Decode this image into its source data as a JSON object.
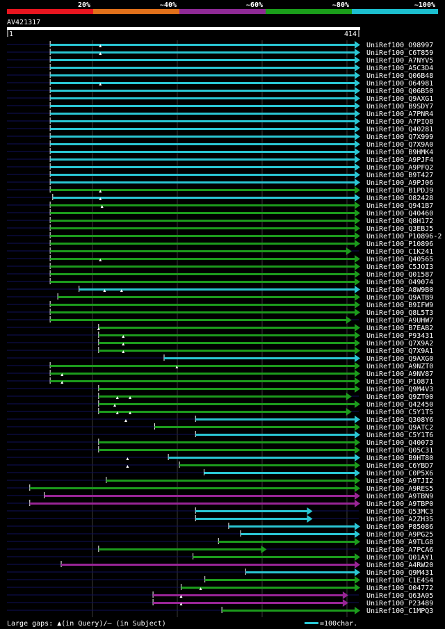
{
  "chart_data": {
    "type": "alignment-map",
    "query_id": "AV421317",
    "query_range": [
      1,
      414
    ],
    "query_start_label": "1",
    "query_end_label": "414",
    "identity_legend": [
      {
        "label": "20%",
        "color": "#e8151f"
      },
      {
        "label": "~40%",
        "color": "#e0701a"
      },
      {
        "label": "~60%",
        "color": "#8f2a96"
      },
      {
        "label": "~80%",
        "color": "#1a9e1a"
      },
      {
        "label": "~100%",
        "color": "#1cbfcf"
      }
    ],
    "footer_text": "Large gaps: ▲(in Query)/– (in Subject)",
    "scale_text": "=100char.",
    "hits": [
      {
        "label": "UniRef100_O98997",
        "start": 51,
        "end": 414,
        "color": "cyan",
        "gaps": [
          110
        ]
      },
      {
        "label": "UniRef100_C6T859",
        "start": 51,
        "end": 414,
        "color": "cyan",
        "gaps": [
          110
        ]
      },
      {
        "label": "UniRef100_A7NYV5",
        "start": 51,
        "end": 414,
        "color": "cyan",
        "gaps": []
      },
      {
        "label": "UniRef100_A5C3D4",
        "start": 51,
        "end": 414,
        "color": "cyan",
        "gaps": []
      },
      {
        "label": "UniRef100_Q06B48",
        "start": 51,
        "end": 414,
        "color": "cyan",
        "gaps": []
      },
      {
        "label": "UniRef100_O64981",
        "start": 51,
        "end": 414,
        "color": "cyan",
        "gaps": [
          110
        ]
      },
      {
        "label": "UniRef100_Q06B50",
        "start": 51,
        "end": 414,
        "color": "cyan",
        "gaps": []
      },
      {
        "label": "UniRef100_Q9AXG1",
        "start": 51,
        "end": 414,
        "color": "cyan",
        "gaps": []
      },
      {
        "label": "UniRef100_B9SDY7",
        "start": 51,
        "end": 414,
        "color": "cyan",
        "gaps": []
      },
      {
        "label": "UniRef100_A7PNR4",
        "start": 51,
        "end": 414,
        "color": "cyan",
        "gaps": []
      },
      {
        "label": "UniRef100_A7PIQ8",
        "start": 51,
        "end": 414,
        "color": "cyan",
        "gaps": []
      },
      {
        "label": "UniRef100_Q40281",
        "start": 51,
        "end": 414,
        "color": "cyan",
        "gaps": []
      },
      {
        "label": "UniRef100_Q7X999",
        "start": 51,
        "end": 414,
        "color": "cyan",
        "gaps": []
      },
      {
        "label": "UniRef100_Q7X9A0",
        "start": 51,
        "end": 414,
        "color": "cyan",
        "gaps": []
      },
      {
        "label": "UniRef100_B9HMK4",
        "start": 51,
        "end": 414,
        "color": "cyan",
        "gaps": []
      },
      {
        "label": "UniRef100_A9PJF4",
        "start": 51,
        "end": 414,
        "color": "cyan",
        "gaps": []
      },
      {
        "label": "UniRef100_A9PFQ2",
        "start": 51,
        "end": 414,
        "color": "cyan",
        "gaps": []
      },
      {
        "label": "UniRef100_B9T427",
        "start": 51,
        "end": 414,
        "color": "cyan",
        "gaps": []
      },
      {
        "label": "UniRef100_A9PJ06",
        "start": 51,
        "end": 414,
        "color": "cyan",
        "gaps": []
      },
      {
        "label": "UniRef100_B1PDJ9",
        "start": 51,
        "end": 414,
        "color": "green",
        "gaps": [
          110
        ]
      },
      {
        "label": "UniRef100_O82428",
        "start": 54,
        "end": 414,
        "color": "cyan",
        "gaps": [
          110
        ]
      },
      {
        "label": "UniRef100_Q941B7",
        "start": 51,
        "end": 414,
        "color": "green",
        "gaps": [
          112
        ]
      },
      {
        "label": "UniRef100_Q40460",
        "start": 51,
        "end": 414,
        "color": "green",
        "gaps": []
      },
      {
        "label": "UniRef100_Q8H172",
        "start": 51,
        "end": 414,
        "color": "green",
        "gaps": []
      },
      {
        "label": "UniRef100_Q3EBJ5",
        "start": 51,
        "end": 414,
        "color": "green",
        "gaps": []
      },
      {
        "label": "UniRef100_P10896-2",
        "start": 51,
        "end": 414,
        "color": "green",
        "gaps": []
      },
      {
        "label": "UniRef100_P10896",
        "start": 51,
        "end": 414,
        "color": "green",
        "gaps": []
      },
      {
        "label": "UniRef100_C1K241",
        "start": 51,
        "end": 404,
        "color": "green",
        "gaps": []
      },
      {
        "label": "UniRef100_Q40565",
        "start": 51,
        "end": 414,
        "color": "green",
        "gaps": [
          110
        ]
      },
      {
        "label": "UniRef100_C5JOI3",
        "start": 51,
        "end": 414,
        "color": "green",
        "gaps": []
      },
      {
        "label": "UniRef100_Q01587",
        "start": 51,
        "end": 414,
        "color": "green",
        "gaps": []
      },
      {
        "label": "UniRef100_O49074",
        "start": 51,
        "end": 414,
        "color": "green",
        "gaps": []
      },
      {
        "label": "UniRef100_A8W9B0",
        "start": 85,
        "end": 414,
        "color": "cyan",
        "gaps": [
          115,
          135
        ]
      },
      {
        "label": "UniRef100_Q9ATB9",
        "start": 60,
        "end": 414,
        "color": "green",
        "gaps": []
      },
      {
        "label": "UniRef100_B9IFW9",
        "start": 51,
        "end": 414,
        "color": "green",
        "gaps": []
      },
      {
        "label": "UniRef100_Q8L5T3",
        "start": 51,
        "end": 414,
        "color": "green",
        "gaps": []
      },
      {
        "label": "UniRef100_A9UHW7",
        "start": 51,
        "end": 404,
        "color": "green",
        "gaps": []
      },
      {
        "label": "UniRef100_B7EAB2",
        "start": 108,
        "end": 414,
        "color": "green",
        "gaps": [
          108
        ]
      },
      {
        "label": "UniRef100_P93431",
        "start": 108,
        "end": 414,
        "color": "green",
        "gaps": [
          137
        ]
      },
      {
        "label": "UniRef100_Q7X9A2",
        "start": 108,
        "end": 414,
        "color": "green",
        "gaps": [
          137
        ]
      },
      {
        "label": "UniRef100_Q7X9A1",
        "start": 108,
        "end": 414,
        "color": "green",
        "gaps": [
          137
        ]
      },
      {
        "label": "UniRef100_Q9AXG0",
        "start": 185,
        "end": 414,
        "color": "cyan",
        "gaps": []
      },
      {
        "label": "UniRef100_A9NZT0",
        "start": 51,
        "end": 414,
        "color": "green",
        "gaps": [
          200
        ]
      },
      {
        "label": "UniRef100_A9NV87",
        "start": 51,
        "end": 414,
        "color": "green",
        "gaps": [
          65
        ]
      },
      {
        "label": "UniRef100_P10871",
        "start": 51,
        "end": 414,
        "color": "green",
        "gaps": [
          65
        ]
      },
      {
        "label": "UniRef100_Q9M4V3",
        "start": 108,
        "end": 414,
        "color": "green",
        "gaps": []
      },
      {
        "label": "UniRef100_Q9ZT00",
        "start": 108,
        "end": 404,
        "color": "green",
        "gaps": [
          130,
          145
        ]
      },
      {
        "label": "UniRef100_Q42450",
        "start": 108,
        "end": 414,
        "color": "green",
        "gaps": [
          127
        ]
      },
      {
        "label": "UniRef100_C5Y1T5",
        "start": 108,
        "end": 404,
        "color": "green",
        "gaps": [
          130,
          145
        ]
      },
      {
        "label": "UniRef100_Q308Y6",
        "start": 222,
        "end": 414,
        "color": "cyan",
        "gaps": [
          140
        ]
      },
      {
        "label": "UniRef100_Q9ATC2",
        "start": 174,
        "end": 414,
        "color": "green",
        "gaps": []
      },
      {
        "label": "UniRef100_C5Y1T6",
        "start": 222,
        "end": 414,
        "color": "cyan",
        "gaps": []
      },
      {
        "label": "UniRef100_Q40073",
        "start": 108,
        "end": 414,
        "color": "green",
        "gaps": []
      },
      {
        "label": "UniRef100_Q05C31",
        "start": 108,
        "end": 414,
        "color": "green",
        "gaps": []
      },
      {
        "label": "UniRef100_B9HT80",
        "start": 190,
        "end": 414,
        "color": "cyan",
        "gaps": [
          142
        ]
      },
      {
        "label": "UniRef100_C6YBD7",
        "start": 203,
        "end": 414,
        "color": "green",
        "gaps": [
          142
        ]
      },
      {
        "label": "UniRef100_C0P5X6",
        "start": 232,
        "end": 414,
        "color": "cyan",
        "gaps": []
      },
      {
        "label": "UniRef100_A9TJI2",
        "start": 117,
        "end": 414,
        "color": "green",
        "gaps": []
      },
      {
        "label": "UniRef100_A9RES5",
        "start": 27,
        "end": 414,
        "color": "green",
        "gaps": []
      },
      {
        "label": "UniRef100_A9TBN9",
        "start": 44,
        "end": 414,
        "color": "purple",
        "gaps": []
      },
      {
        "label": "UniRef100_A9TBP0",
        "start": 27,
        "end": 414,
        "color": "purple",
        "gaps": []
      },
      {
        "label": "UniRef100_Q53MC3",
        "start": 222,
        "end": 358,
        "color": "cyan",
        "gaps": []
      },
      {
        "label": "UniRef100_A2ZH35",
        "start": 222,
        "end": 358,
        "color": "cyan",
        "gaps": []
      },
      {
        "label": "UniRef100_P85086",
        "start": 261,
        "end": 414,
        "color": "cyan",
        "gaps": []
      },
      {
        "label": "UniRef100_A9PG25",
        "start": 275,
        "end": 414,
        "color": "cyan",
        "gaps": []
      },
      {
        "label": "UniRef100_A9TLG8",
        "start": 249,
        "end": 414,
        "color": "green",
        "gaps": []
      },
      {
        "label": "UniRef100_A7PCA6",
        "start": 108,
        "end": 304,
        "color": "green",
        "gaps": []
      },
      {
        "label": "UniRef100_Q01AY1",
        "start": 219,
        "end": 414,
        "color": "green",
        "gaps": []
      },
      {
        "label": "UniRef100_A4RW20",
        "start": 64,
        "end": 414,
        "color": "purple",
        "gaps": []
      },
      {
        "label": "UniRef100_Q9M431",
        "start": 281,
        "end": 414,
        "color": "cyan",
        "gaps": []
      },
      {
        "label": "UniRef100_C1E4S4",
        "start": 233,
        "end": 414,
        "color": "green",
        "gaps": []
      },
      {
        "label": "UniRef100_O04772",
        "start": 205,
        "end": 414,
        "color": "green",
        "gaps": [
          228
        ]
      },
      {
        "label": "UniRef100_Q63A05",
        "start": 172,
        "end": 400,
        "color": "purple",
        "gaps": [
          205
        ]
      },
      {
        "label": "UniRef100_P23489",
        "start": 172,
        "end": 400,
        "color": "purple",
        "gaps": [
          205
        ]
      },
      {
        "label": "UniRef100_C1MPQ3",
        "start": 253,
        "end": 414,
        "color": "green",
        "gaps": []
      }
    ]
  },
  "colors": {
    "cyan": "#2ac6d4",
    "green": "#1c9b1c",
    "purple": "#992596",
    "query_bar": "#ffffff",
    "row_line": "#10105a",
    "grid": "#3a3a3a"
  }
}
